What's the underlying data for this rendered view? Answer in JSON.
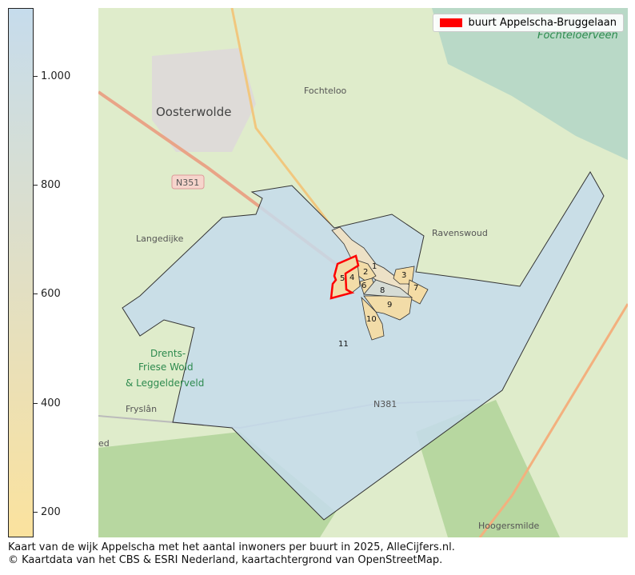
{
  "colorbar": {
    "ticks": [
      "1.000",
      "800",
      "600",
      "400",
      "200"
    ],
    "tick_values": [
      1000,
      800,
      600,
      400,
      200
    ],
    "range": [
      160,
      1130
    ],
    "color_low": "#fbe29e",
    "color_high": "#c6dcec"
  },
  "legend": {
    "label": "buurt Appelscha-Bruggelaan",
    "color": "#ff0000"
  },
  "map": {
    "places": [
      "Oosterwolde",
      "Fochteloo",
      "Fochteloërveen",
      "N351",
      "Langedijke",
      "Ravenswoud",
      "Drents-",
      "Friese Wold",
      "& Leggelderveld",
      "Fryslân",
      "N381",
      "Hoogersmilde",
      "ed"
    ],
    "buurt_labels": [
      "1",
      "2",
      "3",
      "4",
      "5",
      "6",
      "7",
      "8",
      "9",
      "10",
      "11"
    ],
    "highlight_color": "#ff0000"
  },
  "caption": {
    "line1": "Kaart van de wijk Appelscha met het aantal inwoners per buurt in 2025, AlleCijfers.nl.",
    "line2": "© Kaartdata van het CBS & ESRI Nederland, kaartachtergrond van OpenStreetMap."
  }
}
